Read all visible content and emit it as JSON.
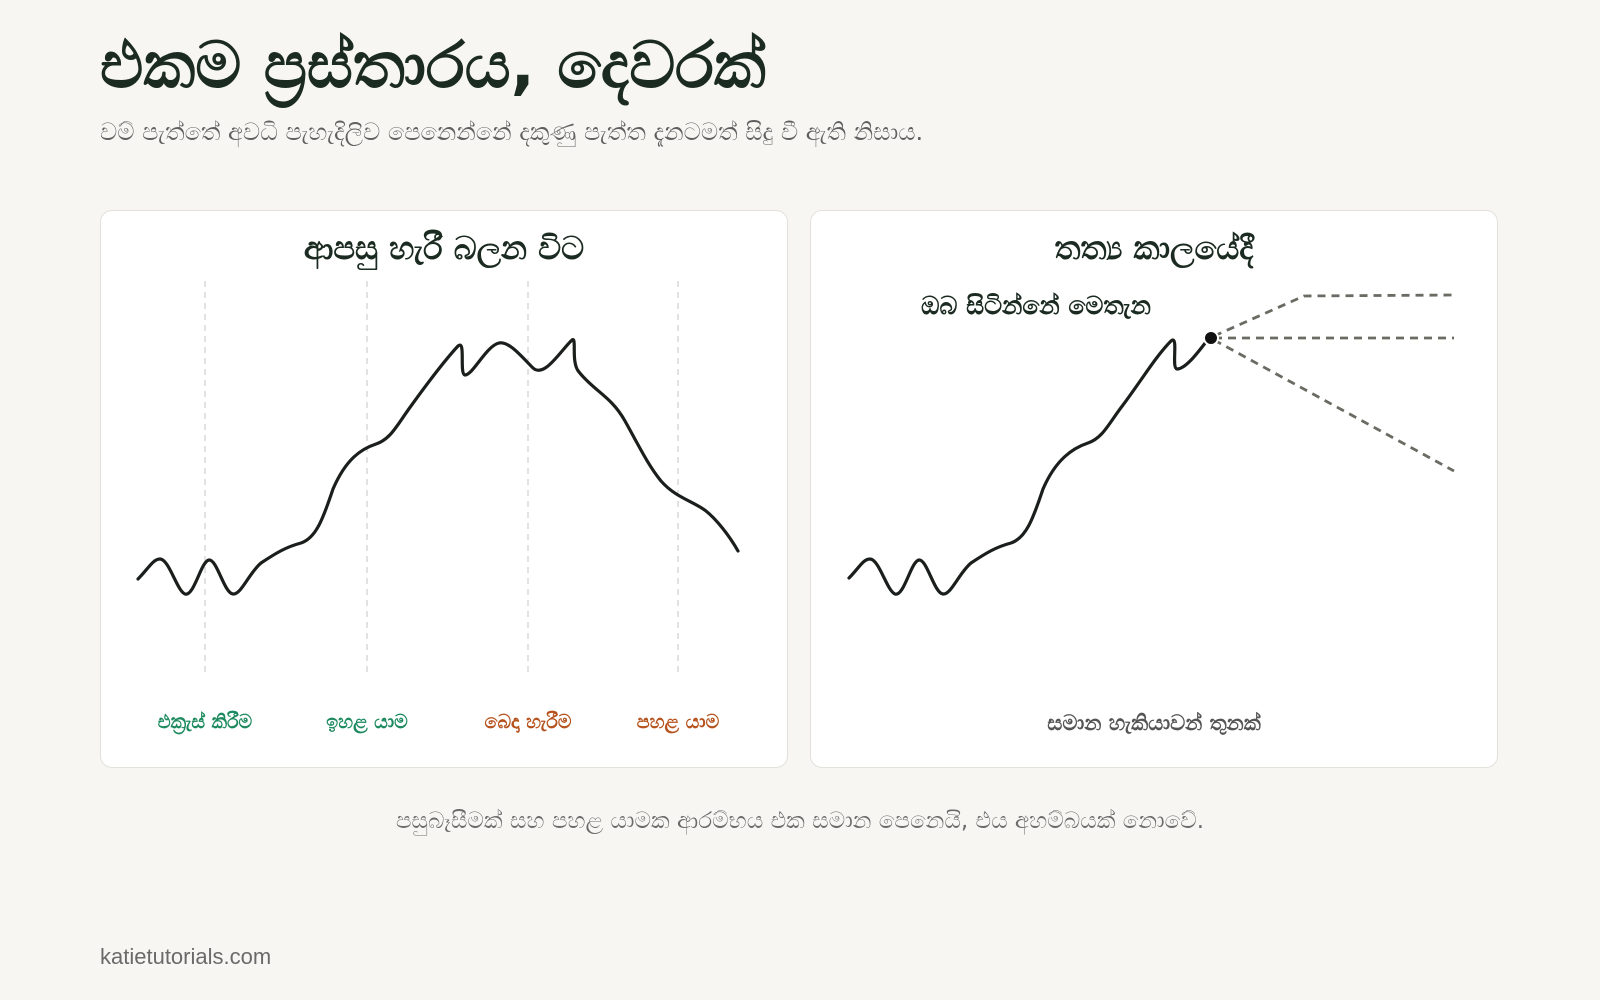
{
  "title": "එකම ප්‍රස්තාරය, දෙවරක්",
  "subtitle": "වම් පැත්තේ අවධි පැහැදිලිව පෙනෙන්නේ දකුණු පැත්ත දැනටමත් සිදු වී ඇති නිසාය.",
  "left_panel": {
    "title": "ආපසු හැරී බලන විට",
    "phases": [
      {
        "label": "එක්‍රැස් කිරීම",
        "color": "#1c8a5e"
      },
      {
        "label": "ඉහළ යාම",
        "color": "#1c8a5e"
      },
      {
        "label": "බෙදා හැරීම",
        "color": "#b5521d"
      },
      {
        "label": "පහළ යාම",
        "color": "#b5521d"
      }
    ]
  },
  "right_panel": {
    "title": "තත්‍ය කාලයේදී",
    "marker_label": "ඔබ සිටින්නේ මෙතැන",
    "possibilities_label": "සමාන හැකියාවන් තුනක්"
  },
  "caption": "පසුබෑසීමක් සහ පහළ යාමක ආරම්භය එක සමාන පෙනෙයි, එය අහම්බයක් නොවේ.",
  "footer": "katietutorials.com",
  "colors": {
    "line": "#1b1f1c",
    "dashed": "#6b6b63",
    "divider": "#d9d9d9",
    "accumulation_markup": "#1c8a5e",
    "distribution_markdown": "#b5521d"
  }
}
